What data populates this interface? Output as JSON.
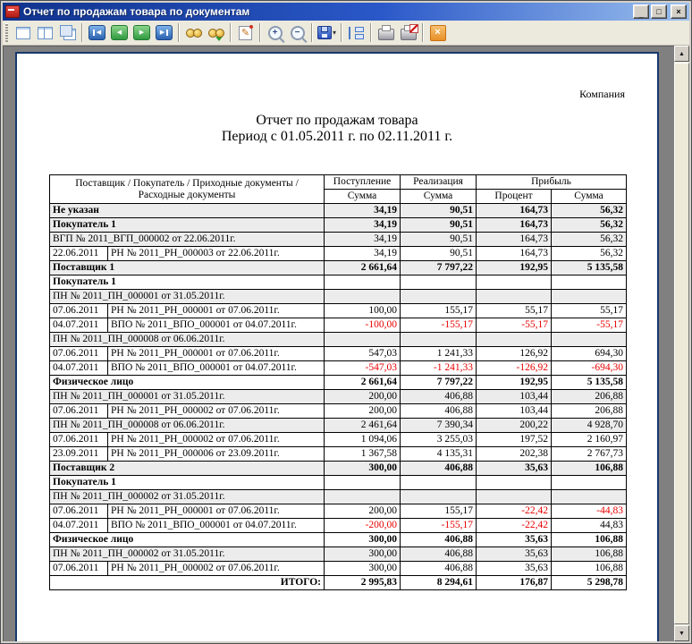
{
  "window": {
    "title": "Отчет по продажам товара по документам"
  },
  "icons": {
    "minimize": "_",
    "maximize": "□",
    "close": "×",
    "scroll_up": "▲",
    "scroll_down": "▼",
    "dropdown": "▾"
  },
  "toolbar": {
    "buttons": [
      {
        "name": "one-page-view",
        "style": "pageone"
      },
      {
        "name": "two-page-view",
        "style": "pagetwo"
      },
      {
        "name": "multi-page-view",
        "style": "pagestack"
      },
      {
        "sep": true
      },
      {
        "name": "first-page",
        "style": "nav",
        "color": "blue",
        "bar": "left",
        "glyph": "◀"
      },
      {
        "name": "previous-page",
        "style": "nav",
        "color": "green",
        "glyph": "◀"
      },
      {
        "name": "next-page",
        "style": "nav",
        "color": "green",
        "glyph": "▶"
      },
      {
        "name": "last-page",
        "style": "nav",
        "color": "blue",
        "bar": "right",
        "glyph": "▶"
      },
      {
        "sep": true
      },
      {
        "name": "find",
        "style": "binoc"
      },
      {
        "name": "find-next",
        "style": "binoc-next"
      },
      {
        "sep": true
      },
      {
        "name": "edit",
        "style": "edit",
        "glyph": "✎"
      },
      {
        "sep": true
      },
      {
        "name": "zoom-in",
        "style": "mag",
        "glyph": "+"
      },
      {
        "name": "zoom-out",
        "style": "mag",
        "glyph": "−"
      },
      {
        "sep": true
      },
      {
        "name": "save",
        "style": "save",
        "dropdown": true
      },
      {
        "sep": true
      },
      {
        "name": "document-structure",
        "style": "outline"
      },
      {
        "sep": true
      },
      {
        "name": "print",
        "style": "print"
      },
      {
        "name": "print-settings",
        "style": "print-setup"
      },
      {
        "sep": true
      },
      {
        "name": "close-preview",
        "style": "closex",
        "glyph": "×"
      }
    ]
  },
  "document": {
    "company_label": "Компания",
    "title": "Отчет по продажам товара",
    "period": "Период с 01.05.2011 г. по 02.11.2011 г.",
    "table": {
      "header": {
        "col1_line1": "Поставщик / Покупатель / Приходные документы /",
        "col1_line2": "Расходные документы",
        "receipt": "Поступление",
        "sales": "Реализация",
        "profit": "Прибыль",
        "sum_receipt": "Сумма",
        "sum_sales": "Сумма",
        "percent": "Процент",
        "sum_profit": "Сумма"
      },
      "rows": [
        {
          "kind": "group",
          "bold": true,
          "shaded": true,
          "label": "Не указан",
          "values": [
            "34,19",
            "90,51",
            "164,73",
            "56,32"
          ]
        },
        {
          "kind": "group",
          "bold": true,
          "shaded": true,
          "label": "Покупатель 1",
          "values": [
            "34,19",
            "90,51",
            "164,73",
            "56,32"
          ]
        },
        {
          "kind": "doc",
          "shaded": true,
          "label": "ВГП № 2011_ВГП_000002 от 22.06.2011г.",
          "values": [
            "34,19",
            "90,51",
            "164,73",
            "56,32"
          ]
        },
        {
          "kind": "detail",
          "date": "22.06.2011",
          "label": "РН № 2011_РН_000003 от 22.06.2011г.",
          "values": [
            "34,19",
            "90,51",
            "164,73",
            "56,32"
          ]
        },
        {
          "kind": "group",
          "bold": true,
          "shaded": true,
          "label": "Поставщик 1",
          "values": [
            "2 661,64",
            "7 797,22",
            "192,95",
            "5 135,58"
          ]
        },
        {
          "kind": "group",
          "bold": true,
          "label": "Покупатель 1",
          "values": [
            "",
            "",
            "",
            ""
          ]
        },
        {
          "kind": "doc",
          "shaded": true,
          "label": "ПН № 2011_ПН_000001 от 31.05.2011г.",
          "values": [
            "",
            "",
            "",
            ""
          ]
        },
        {
          "kind": "detail",
          "date": "07.06.2011",
          "label": "РН № 2011_РН_000001 от 07.06.2011г.",
          "values": [
            "100,00",
            "155,17",
            "55,17",
            "55,17"
          ]
        },
        {
          "kind": "detail",
          "date": "04.07.2011",
          "label": "ВПО № 2011_ВПО_000001 от 04.07.2011г.",
          "values": [
            "-100,00",
            "-155,17",
            "-55,17",
            "-55,17"
          ]
        },
        {
          "kind": "doc",
          "shaded": true,
          "label": "ПН № 2011_ПН_000008 от 06.06.2011г.",
          "values": [
            "",
            "",
            "",
            ""
          ]
        },
        {
          "kind": "detail",
          "date": "07.06.2011",
          "label": "РН № 2011_РН_000001 от 07.06.2011г.",
          "values": [
            "547,03",
            "1 241,33",
            "126,92",
            "694,30"
          ]
        },
        {
          "kind": "detail",
          "date": "04.07.2011",
          "label": "ВПО № 2011_ВПО_000001 от 04.07.2011г.",
          "values": [
            "-547,03",
            "-1 241,33",
            "-126,92",
            "-694,30"
          ]
        },
        {
          "kind": "group",
          "bold": true,
          "label": "Физическое лицо",
          "values": [
            "2 661,64",
            "7 797,22",
            "192,95",
            "5 135,58"
          ]
        },
        {
          "kind": "doc",
          "shaded": true,
          "label": "ПН № 2011_ПН_000001 от 31.05.2011г.",
          "values": [
            "200,00",
            "406,88",
            "103,44",
            "206,88"
          ]
        },
        {
          "kind": "detail",
          "date": "07.06.2011",
          "label": "РН № 2011_РН_000002 от 07.06.2011г.",
          "values": [
            "200,00",
            "406,88",
            "103,44",
            "206,88"
          ]
        },
        {
          "kind": "doc",
          "shaded": true,
          "label": "ПН № 2011_ПН_000008 от 06.06.2011г.",
          "values": [
            "2 461,64",
            "7 390,34",
            "200,22",
            "4 928,70"
          ]
        },
        {
          "kind": "detail",
          "date": "07.06.2011",
          "label": "РН № 2011_РН_000002 от 07.06.2011г.",
          "values": [
            "1 094,06",
            "3 255,03",
            "197,52",
            "2 160,97"
          ]
        },
        {
          "kind": "detail",
          "date": "23.09.2011",
          "label": "РН № 2011_РН_000006 от 23.09.2011г.",
          "values": [
            "1 367,58",
            "4 135,31",
            "202,38",
            "2 767,73"
          ]
        },
        {
          "kind": "group",
          "bold": true,
          "shaded": true,
          "label": "Поставщик 2",
          "values": [
            "300,00",
            "406,88",
            "35,63",
            "106,88"
          ]
        },
        {
          "kind": "group",
          "bold": true,
          "label": "Покупатель 1",
          "values": [
            "",
            "",
            "",
            ""
          ]
        },
        {
          "kind": "doc",
          "shaded": true,
          "label": "ПН № 2011_ПН_000002 от 31.05.2011г.",
          "values": [
            "",
            "",
            "",
            ""
          ]
        },
        {
          "kind": "detail",
          "date": "07.06.2011",
          "label": "РН № 2011_РН_000001 от 07.06.2011г.",
          "values": [
            "200,00",
            "155,17",
            "-22,42",
            "-44,83"
          ]
        },
        {
          "kind": "detail",
          "date": "04.07.2011",
          "label": "ВПО № 2011_ВПО_000001 от 04.07.2011г.",
          "values": [
            "-200,00",
            "-155,17",
            "-22,42",
            "44,83"
          ]
        },
        {
          "kind": "group",
          "bold": true,
          "label": "Физическое лицо",
          "values": [
            "300,00",
            "406,88",
            "35,63",
            "106,88"
          ]
        },
        {
          "kind": "doc",
          "shaded": true,
          "label": "ПН № 2011_ПН_000002 от 31.05.2011г.",
          "values": [
            "300,00",
            "406,88",
            "35,63",
            "106,88"
          ]
        },
        {
          "kind": "detail",
          "date": "07.06.2011",
          "label": "РН № 2011_РН_000002 от 07.06.2011г.",
          "values": [
            "300,00",
            "406,88",
            "35,63",
            "106,88"
          ]
        },
        {
          "kind": "total",
          "bold": true,
          "label": "ИТОГО:",
          "values": [
            "2 995,83",
            "8 294,61",
            "176,87",
            "5 298,78"
          ]
        }
      ]
    }
  }
}
